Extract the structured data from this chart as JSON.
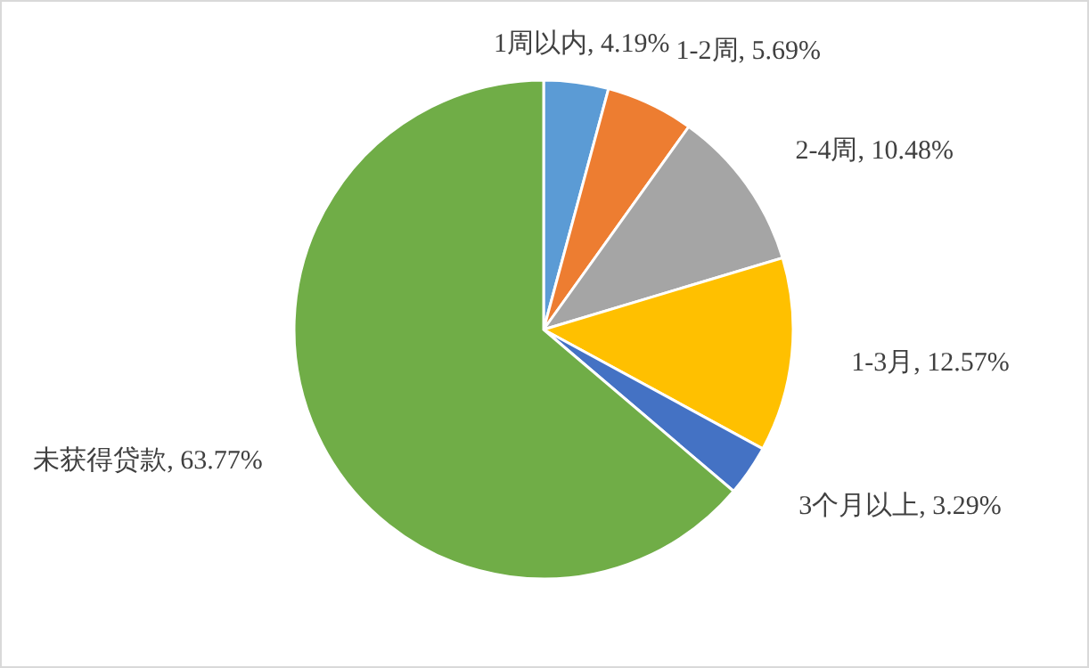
{
  "chart_data": {
    "type": "pie",
    "categories": [
      "1周以内",
      "1-2周",
      "2-4周",
      "1-3月",
      "3个月以上",
      "未获得贷款"
    ],
    "values": [
      4.19,
      5.69,
      10.48,
      12.57,
      3.29,
      63.77
    ],
    "value_labels": [
      "4.19%",
      "5.69%",
      "10.48%",
      "12.57%",
      "3.29%",
      "63.77%"
    ],
    "colors": [
      "#5b9bd5",
      "#ed7d31",
      "#a5a5a5",
      "#ffc000",
      "#4472c4",
      "#70ad47"
    ]
  }
}
